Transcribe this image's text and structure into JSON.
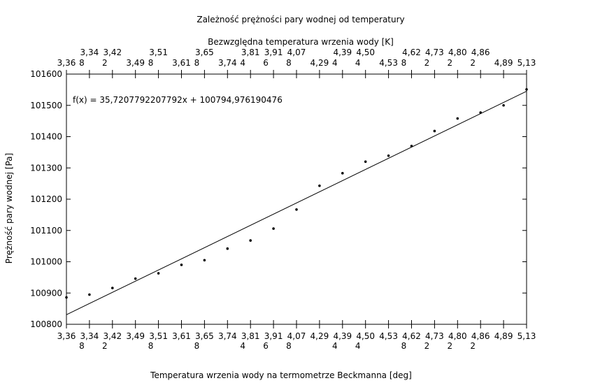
{
  "chart_data": {
    "type": "scatter",
    "title": "Zależność prężności pary wodnej od temperatury",
    "top_xlabel": "Bezwzględna temperatura wrzenia wody [K]",
    "xlabel": "Temperatura wrzenia wody na termometrze Beckmanna [deg]",
    "ylabel": "Prężność pary wodnej [Pa]",
    "ylim": [
      100800,
      101600
    ],
    "y_ticks": [
      "100800",
      "100900",
      "101000",
      "101100",
      "101200",
      "101300",
      "101400",
      "101500",
      "101600"
    ],
    "x_tick_labels": [
      [
        "3,36",
        ""
      ],
      [
        "3,34",
        "8"
      ],
      [
        "3,42",
        "2"
      ],
      [
        "3,49",
        ""
      ],
      [
        "3,51",
        "8"
      ],
      [
        "3,61",
        ""
      ],
      [
        "3,65",
        "8"
      ],
      [
        "3,74",
        ""
      ],
      [
        "3,81",
        "4"
      ],
      [
        "3,91",
        "6"
      ],
      [
        "4,07",
        "8"
      ],
      [
        "4,29",
        ""
      ],
      [
        "4,39",
        "4"
      ],
      [
        "4,50",
        "4"
      ],
      [
        "4,53",
        ""
      ],
      [
        "4,62",
        "8"
      ],
      [
        "4,73",
        "2"
      ],
      [
        "4,80",
        "2"
      ],
      [
        "4,86",
        "2"
      ],
      [
        "4,89",
        ""
      ],
      [
        "5,13",
        ""
      ]
    ],
    "top_tick_labels": [
      [
        "",
        "3,36"
      ],
      [
        "3,34",
        "8"
      ],
      [
        "3,42",
        "2"
      ],
      [
        "",
        "3,49"
      ],
      [
        "3,51",
        "8"
      ],
      [
        "",
        "3,61"
      ],
      [
        "3,65",
        "8"
      ],
      [
        "",
        "3,74"
      ],
      [
        "3,81",
        "4"
      ],
      [
        "3,91",
        "6"
      ],
      [
        "4,07",
        "8"
      ],
      [
        "",
        "4,29"
      ],
      [
        "4,39",
        "4"
      ],
      [
        "4,50",
        "4"
      ],
      [
        "",
        "4,53"
      ],
      [
        "4,62",
        "8"
      ],
      [
        "4,73",
        "2"
      ],
      [
        "4,80",
        "2"
      ],
      [
        "4,86",
        "2"
      ],
      [
        "",
        "4,89"
      ],
      [
        "",
        "5,13"
      ]
    ],
    "series": [
      {
        "x": [
          1,
          2,
          3,
          4,
          5,
          6,
          7,
          8,
          9,
          10,
          11,
          12,
          13,
          14,
          15,
          16,
          17,
          18,
          19,
          20,
          21
        ],
        "values": [
          100886,
          100895,
          100916,
          100946,
          100963,
          100990,
          101005,
          101042,
          101068,
          101106,
          101167,
          101243,
          101283,
          101320,
          101339,
          101370,
          101418,
          101458,
          101477,
          101500,
          101551
        ]
      }
    ],
    "fit": {
      "label": "f(x) = 35,7207792207792x + 100794,976190476",
      "slope": 35.7207792207792,
      "intercept": 100794.976190476
    },
    "grid": false,
    "legend": "none"
  }
}
